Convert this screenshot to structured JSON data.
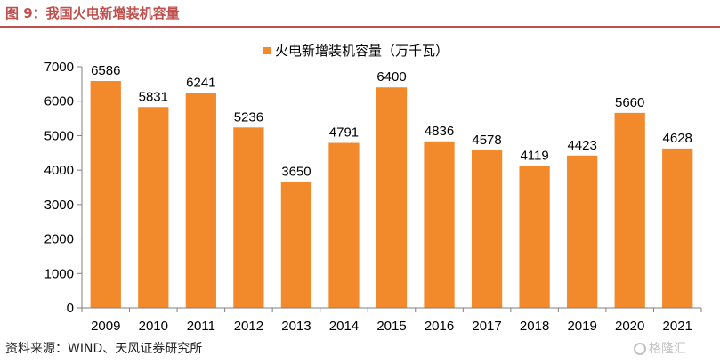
{
  "figure": {
    "title": "图 9：我国火电新增装机容量",
    "source": "资料来源：WIND、天风证券研究所",
    "watermark": "格隆汇"
  },
  "colors": {
    "bar": "#f28a2c",
    "title": "#c0504d",
    "axis": "#7f7f7f"
  },
  "chart_data": {
    "type": "bar",
    "title": "",
    "xlabel": "",
    "ylabel": "",
    "categories": [
      "2009",
      "2010",
      "2011",
      "2012",
      "2013",
      "2014",
      "2015",
      "2016",
      "2017",
      "2018",
      "2019",
      "2020",
      "2021"
    ],
    "series": [
      {
        "name": "火电新增装机容量（万千瓦）",
        "values": [
          6586,
          5831,
          6241,
          5236,
          3650,
          4791,
          6400,
          4836,
          4578,
          4119,
          4423,
          5660,
          4628
        ]
      }
    ],
    "ylim": [
      0,
      7000
    ],
    "yticks": [
      0,
      1000,
      2000,
      3000,
      4000,
      5000,
      6000,
      7000
    ],
    "data_labels": true,
    "grid": false,
    "legend_position": "top-center"
  }
}
